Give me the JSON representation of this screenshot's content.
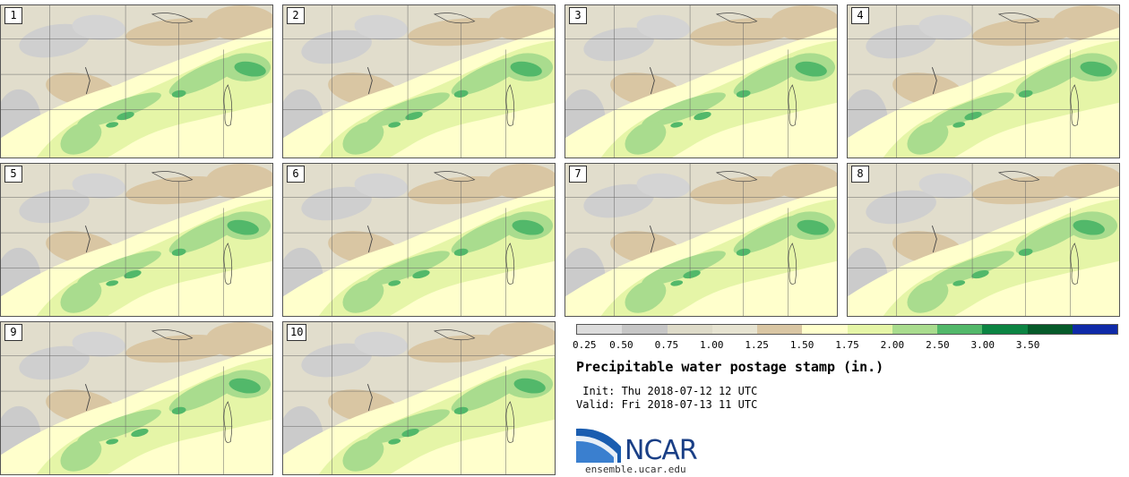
{
  "panels": [
    {
      "label": "1"
    },
    {
      "label": "2"
    },
    {
      "label": "3"
    },
    {
      "label": "4"
    },
    {
      "label": "5"
    },
    {
      "label": "6"
    },
    {
      "label": "7"
    },
    {
      "label": "8"
    },
    {
      "label": "9"
    },
    {
      "label": "10"
    }
  ],
  "legend": {
    "colors": [
      "#dcdcdc",
      "#c6c6c6",
      "#dedbc9",
      "#e6e3d1",
      "#d9c6a3",
      "#ffffcc",
      "#e5f5a7",
      "#a9dc8e",
      "#52b86a",
      "#0c8443",
      "#065a2a",
      "#0f2aa8"
    ],
    "labels": [
      "0.25",
      "0.50",
      "0.75",
      "1.00",
      "1.25",
      "1.50",
      "1.75",
      "2.00",
      "2.50",
      "3.00",
      "3.50"
    ]
  },
  "title": "Precipitable water postage stamp (in.)",
  "init": " Init: Thu 2018-07-12 12 UTC",
  "valid": "Valid: Fri 2018-07-13 11 UTC",
  "logo": {
    "text": "NCAR",
    "url": "ensemble.ucar.edu"
  }
}
